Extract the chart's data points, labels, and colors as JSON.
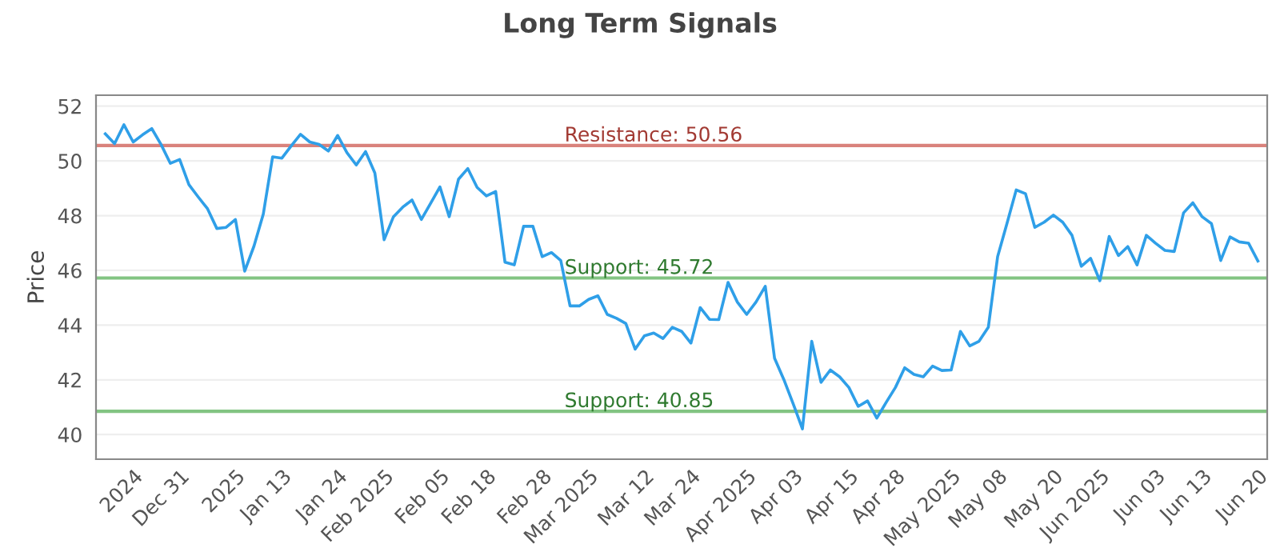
{
  "chart_data": {
    "type": "line",
    "title": "Long Term Signals",
    "ylabel": "Price",
    "categories": [
      null,
      null,
      null,
      "2024",
      null,
      null,
      null,
      null,
      "Dec 31",
      null,
      null,
      null,
      null,
      null,
      "2025",
      null,
      null,
      null,
      null,
      "Jan 13",
      null,
      null,
      null,
      null,
      null,
      "Jan 24",
      null,
      null,
      null,
      null,
      "Feb 2025",
      null,
      null,
      null,
      null,
      null,
      "Feb 05",
      null,
      null,
      null,
      null,
      "Feb 18",
      null,
      null,
      null,
      null,
      null,
      "Feb 28",
      null,
      null,
      null,
      null,
      "Mar 2025",
      null,
      null,
      null,
      null,
      null,
      "Mar 12",
      null,
      null,
      null,
      null,
      "Mar 24",
      null,
      null,
      null,
      null,
      null,
      "Apr 2025",
      null,
      null,
      null,
      null,
      "Apr 03",
      null,
      null,
      null,
      null,
      null,
      "Apr 15",
      null,
      null,
      null,
      null,
      "Apr 28",
      null,
      null,
      null,
      null,
      null,
      "May 2025",
      null,
      null,
      null,
      null,
      "May 08",
      null,
      null,
      null,
      null,
      null,
      "May 20",
      null,
      null,
      null,
      null,
      "Jun 2025",
      null,
      null,
      null,
      null,
      null,
      "Jun 03",
      null,
      null,
      null,
      null,
      "Jun 13",
      null,
      null,
      null,
      null,
      null,
      "Jun 20"
    ],
    "series": [
      {
        "color": "#2f9fe8",
        "values": [
          50.99,
          50.63,
          51.32,
          50.69,
          50.95,
          51.18,
          50.6,
          49.91,
          50.05,
          49.13,
          48.68,
          48.25,
          47.53,
          47.57,
          47.86,
          45.97,
          46.89,
          48.06,
          50.15,
          50.1,
          50.55,
          50.97,
          50.69,
          50.6,
          50.36,
          50.93,
          50.3,
          49.85,
          50.34,
          49.56,
          47.12,
          47.96,
          48.31,
          48.57,
          47.86,
          48.45,
          49.05,
          47.96,
          49.33,
          49.72,
          49.03,
          48.72,
          48.88,
          46.3,
          46.2,
          47.61,
          47.61,
          46.5,
          46.65,
          46.36,
          44.7,
          44.7,
          44.94,
          45.07,
          44.39,
          44.25,
          44.06,
          43.12,
          43.61,
          43.71,
          43.51,
          43.92,
          43.77,
          43.34,
          44.64,
          44.21,
          44.2,
          45.56,
          44.84,
          44.39,
          44.84,
          45.42,
          42.79,
          42.01,
          41.13,
          40.21,
          43.41,
          41.91,
          42.36,
          42.11,
          41.72,
          41.03,
          41.23,
          40.6,
          41.17,
          41.72,
          42.44,
          42.2,
          42.11,
          42.5,
          42.34,
          42.36,
          43.77,
          43.24,
          43.41,
          43.92,
          46.5,
          47.71,
          48.94,
          48.8,
          47.57,
          47.76,
          48.02,
          47.76,
          47.28,
          46.15,
          46.44,
          45.62,
          47.24,
          46.54,
          46.87,
          46.2,
          47.28,
          46.99,
          46.73,
          46.69,
          48.1,
          48.47,
          47.96,
          47.71,
          46.36,
          47.22,
          47.04,
          46.99,
          46.34
        ]
      }
    ],
    "ylim": [
      39.1,
      52.4
    ],
    "yticks": [
      40,
      42,
      44,
      46,
      48,
      50,
      52
    ],
    "grid": "y",
    "ref_lines": [
      {
        "axis": "y",
        "value": 50.56,
        "label": "Resistance: 50.56",
        "color": "#d9827c"
      },
      {
        "axis": "y",
        "value": 45.72,
        "label": "Support: 45.72",
        "color": "#82c482"
      },
      {
        "axis": "y",
        "value": 40.85,
        "label": "Support: 40.85",
        "color": "#82c482"
      }
    ]
  }
}
